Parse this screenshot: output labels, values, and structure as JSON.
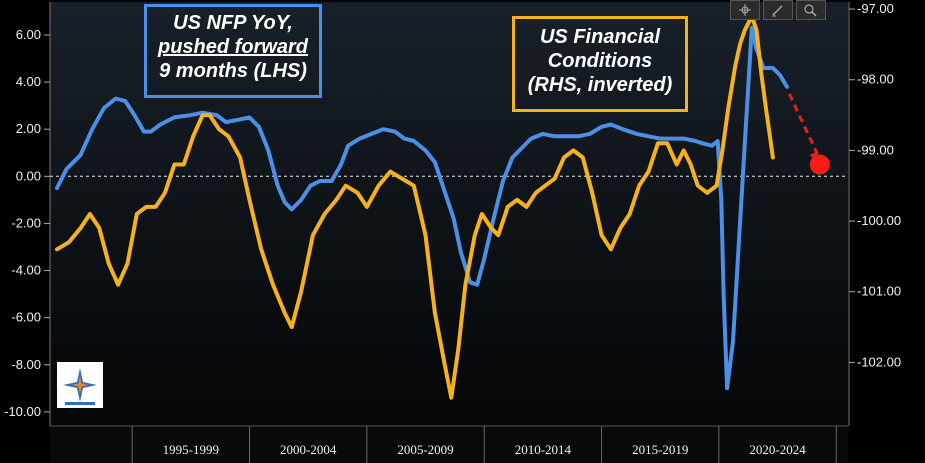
{
  "annotations": {
    "nfp_box": [
      "US NFP YoY,",
      "pushed forward",
      "9 months (LHS)"
    ],
    "fc_box": [
      "US Financial",
      "Conditions",
      "(RHS, inverted)"
    ]
  },
  "toolbar": {
    "icons": [
      "crosshair-icon",
      "pencil-icon",
      "magnifier-icon"
    ]
  },
  "colors": {
    "nfp": "#4c8fe6",
    "fc": "#f6b21c",
    "arrow": "#e32020",
    "background": "#000000"
  },
  "chart_data": {
    "type": "line",
    "title": "",
    "x_categories": [
      "1995-1999",
      "2000-2004",
      "2005-2009",
      "2010-2014",
      "2015-2019",
      "2020-2024"
    ],
    "x_range": [
      1991.5,
      2025.5
    ],
    "y_left": {
      "ticks": [
        "6.00",
        "4.00",
        "2.00",
        "0.00",
        "-2.00",
        "-4.00",
        "-6.00",
        "-8.00",
        "-10.00"
      ],
      "range": [
        -10.6,
        7.4
      ]
    },
    "y_right": {
      "ticks": [
        "-97.00",
        "-98.00",
        "-99.00",
        "-100.00",
        "-101.00",
        "-102.00"
      ],
      "range": [
        -96.9,
        -102.9
      ],
      "inverted": true
    },
    "zero_line": 0,
    "series": [
      {
        "name": "US NFP YoY, pushed forward 9 months (LHS)",
        "axis": "left",
        "points": [
          [
            1991.8,
            -0.5
          ],
          [
            1992.2,
            0.3
          ],
          [
            1992.8,
            0.9
          ],
          [
            1993.3,
            2.0
          ],
          [
            1993.8,
            2.9
          ],
          [
            1994.3,
            3.3
          ],
          [
            1994.7,
            3.2
          ],
          [
            1995.1,
            2.6
          ],
          [
            1995.5,
            1.9
          ],
          [
            1995.8,
            1.9
          ],
          [
            1996.2,
            2.2
          ],
          [
            1996.8,
            2.5
          ],
          [
            1997.5,
            2.6
          ],
          [
            1998.0,
            2.7
          ],
          [
            1998.6,
            2.6
          ],
          [
            1999.0,
            2.3
          ],
          [
            1999.5,
            2.4
          ],
          [
            2000.0,
            2.5
          ],
          [
            2000.4,
            2.1
          ],
          [
            2000.8,
            1.1
          ],
          [
            2001.2,
            -0.4
          ],
          [
            2001.5,
            -1.1
          ],
          [
            2001.8,
            -1.4
          ],
          [
            2002.2,
            -1.0
          ],
          [
            2002.6,
            -0.4
          ],
          [
            2003.0,
            -0.2
          ],
          [
            2003.5,
            -0.2
          ],
          [
            2003.9,
            0.5
          ],
          [
            2004.2,
            1.3
          ],
          [
            2004.7,
            1.6
          ],
          [
            2005.2,
            1.8
          ],
          [
            2005.7,
            2.0
          ],
          [
            2006.2,
            1.9
          ],
          [
            2006.6,
            1.6
          ],
          [
            2007.0,
            1.5
          ],
          [
            2007.5,
            1.1
          ],
          [
            2007.9,
            0.6
          ],
          [
            2008.3,
            -0.6
          ],
          [
            2008.7,
            -1.8
          ],
          [
            2009.0,
            -3.2
          ],
          [
            2009.4,
            -4.5
          ],
          [
            2009.7,
            -4.6
          ],
          [
            2010.0,
            -3.5
          ],
          [
            2010.4,
            -1.8
          ],
          [
            2010.8,
            -0.2
          ],
          [
            2011.2,
            0.8
          ],
          [
            2011.6,
            1.2
          ],
          [
            2012.0,
            1.6
          ],
          [
            2012.5,
            1.8
          ],
          [
            2013.0,
            1.7
          ],
          [
            2013.5,
            1.7
          ],
          [
            2014.0,
            1.7
          ],
          [
            2014.5,
            1.8
          ],
          [
            2015.0,
            2.1
          ],
          [
            2015.4,
            2.2
          ],
          [
            2015.9,
            2.0
          ],
          [
            2016.5,
            1.8
          ],
          [
            2017.0,
            1.7
          ],
          [
            2017.5,
            1.6
          ],
          [
            2018.0,
            1.6
          ],
          [
            2018.5,
            1.6
          ],
          [
            2019.0,
            1.5
          ],
          [
            2019.3,
            1.4
          ],
          [
            2019.7,
            1.3
          ],
          [
            2019.95,
            1.5
          ],
          [
            2020.1,
            -1.0
          ],
          [
            2020.2,
            -5.0
          ],
          [
            2020.35,
            -9.0
          ],
          [
            2020.6,
            -7.0
          ],
          [
            2020.9,
            -2.0
          ],
          [
            2021.2,
            3.0
          ],
          [
            2021.4,
            6.3
          ],
          [
            2021.6,
            5.4
          ],
          [
            2021.9,
            4.6
          ],
          [
            2022.3,
            4.6
          ],
          [
            2022.6,
            4.3
          ],
          [
            2022.9,
            3.8
          ]
        ]
      },
      {
        "name": "US Financial Conditions (RHS, inverted)",
        "axis": "right",
        "points": [
          [
            1991.8,
            -100.4
          ],
          [
            1992.3,
            -100.3
          ],
          [
            1992.8,
            -100.1
          ],
          [
            1993.2,
            -99.9
          ],
          [
            1993.6,
            -100.1
          ],
          [
            1994.0,
            -100.6
          ],
          [
            1994.4,
            -100.9
          ],
          [
            1994.8,
            -100.6
          ],
          [
            1995.2,
            -99.9
          ],
          [
            1995.6,
            -99.8
          ],
          [
            1996.0,
            -99.8
          ],
          [
            1996.4,
            -99.6
          ],
          [
            1996.8,
            -99.2
          ],
          [
            1997.2,
            -99.2
          ],
          [
            1997.6,
            -98.8
          ],
          [
            1998.0,
            -98.5
          ],
          [
            1998.3,
            -98.5
          ],
          [
            1998.7,
            -98.7
          ],
          [
            1999.1,
            -98.8
          ],
          [
            1999.6,
            -99.1
          ],
          [
            2000.0,
            -99.7
          ],
          [
            2000.5,
            -100.4
          ],
          [
            2001.0,
            -100.9
          ],
          [
            2001.5,
            -101.3
          ],
          [
            2001.8,
            -101.5
          ],
          [
            2002.2,
            -101.0
          ],
          [
            2002.7,
            -100.2
          ],
          [
            2003.2,
            -99.9
          ],
          [
            2003.7,
            -99.7
          ],
          [
            2004.1,
            -99.5
          ],
          [
            2004.6,
            -99.6
          ],
          [
            2005.0,
            -99.8
          ],
          [
            2005.5,
            -99.5
          ],
          [
            2006.0,
            -99.3
          ],
          [
            2006.5,
            -99.4
          ],
          [
            2007.0,
            -99.5
          ],
          [
            2007.5,
            -100.2
          ],
          [
            2007.9,
            -101.3
          ],
          [
            2008.3,
            -102.0
          ],
          [
            2008.6,
            -102.5
          ],
          [
            2008.9,
            -101.8
          ],
          [
            2009.2,
            -100.9
          ],
          [
            2009.6,
            -100.2
          ],
          [
            2009.9,
            -99.9
          ],
          [
            2010.3,
            -100.1
          ],
          [
            2010.6,
            -100.2
          ],
          [
            2011.0,
            -99.8
          ],
          [
            2011.4,
            -99.7
          ],
          [
            2011.8,
            -99.8
          ],
          [
            2012.2,
            -99.6
          ],
          [
            2012.6,
            -99.5
          ],
          [
            2013.0,
            -99.4
          ],
          [
            2013.4,
            -99.1
          ],
          [
            2013.8,
            -99.0
          ],
          [
            2014.2,
            -99.1
          ],
          [
            2014.6,
            -99.6
          ],
          [
            2015.0,
            -100.2
          ],
          [
            2015.4,
            -100.4
          ],
          [
            2015.8,
            -100.1
          ],
          [
            2016.2,
            -99.9
          ],
          [
            2016.6,
            -99.5
          ],
          [
            2017.0,
            -99.3
          ],
          [
            2017.4,
            -98.9
          ],
          [
            2017.8,
            -98.9
          ],
          [
            2018.2,
            -99.2
          ],
          [
            2018.5,
            -99.0
          ],
          [
            2018.8,
            -99.2
          ],
          [
            2019.1,
            -99.5
          ],
          [
            2019.5,
            -99.6
          ],
          [
            2019.9,
            -99.5
          ],
          [
            2020.15,
            -99.0
          ],
          [
            2020.4,
            -98.4
          ],
          [
            2020.7,
            -97.8
          ],
          [
            2020.9,
            -97.5
          ],
          [
            2021.1,
            -97.3
          ],
          [
            2021.4,
            -97.1
          ],
          [
            2021.6,
            -97.3
          ],
          [
            2021.8,
            -97.9
          ],
          [
            2022.0,
            -98.4
          ],
          [
            2022.3,
            -99.1
          ]
        ]
      }
    ],
    "annotation_arrow": {
      "from": [
        2023.0,
        3.5
      ],
      "to": [
        2024.2,
        0.6
      ],
      "dot": [
        2024.3,
        0.5
      ]
    }
  }
}
